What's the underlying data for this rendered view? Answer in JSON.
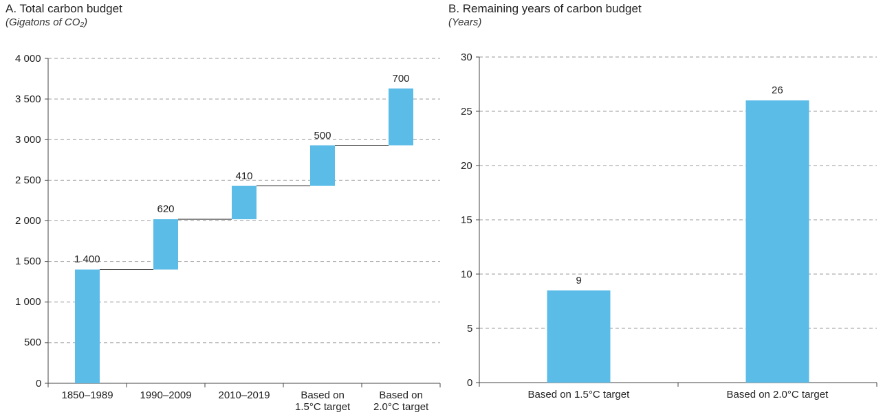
{
  "chart_data": [
    {
      "type": "waterfall",
      "title": "A. Total carbon budget",
      "subtitle": "(Gigatons of CO₂)",
      "categories": [
        "1850–1989",
        "1990–2009",
        "2010–2019",
        "Based on\n1.5°C target",
        "Based on\n2.0°C target"
      ],
      "values": [
        1400,
        620,
        410,
        500,
        700
      ],
      "value_labels": [
        "1 400",
        "620",
        "410",
        "500",
        "700"
      ],
      "color": "#5bbce8",
      "ylim": [
        0,
        4000
      ],
      "yticks": [
        0,
        500,
        {
          "value": 1000,
          "label": "1 000"
        },
        {
          "value": 1500,
          "label": "1 500"
        },
        {
          "value": 2000,
          "label": "2 000"
        },
        {
          "value": 2500,
          "label": "2 500"
        },
        {
          "value": 3000,
          "label": "3 000"
        },
        {
          "value": 3500,
          "label": "3 500"
        },
        {
          "value": 4000,
          "label": "4 000"
        }
      ],
      "grid": true
    },
    {
      "type": "bar",
      "title": "B. Remaining years of carbon budget",
      "subtitle": "(Years)",
      "categories": [
        "Based on 1.5°C target",
        "Based on 2.0°C target"
      ],
      "values": [
        8.5,
        26
      ],
      "value_labels": [
        "9",
        "26"
      ],
      "color": "#5bbce8",
      "ylim": [
        0,
        30
      ],
      "yticks": [
        0,
        5,
        10,
        15,
        20,
        25,
        30
      ],
      "grid": true
    }
  ]
}
